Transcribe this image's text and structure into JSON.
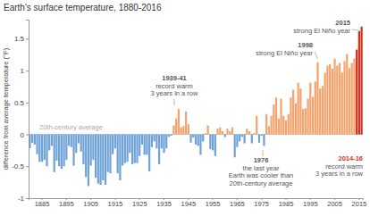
{
  "chart_data": {
    "type": "bar",
    "title": "Earth's surface temperature, 1880-2016",
    "y_label": "difference from average temperature (°F)",
    "categories": [
      null,
      null,
      null,
      null,
      null,
      "1885",
      null,
      null,
      null,
      null,
      null,
      null,
      null,
      null,
      null,
      "1895",
      null,
      null,
      null,
      null,
      null,
      null,
      null,
      null,
      null,
      "1905",
      null,
      null,
      null,
      null,
      null,
      null,
      null,
      null,
      null,
      "1915",
      null,
      null,
      null,
      null,
      null,
      null,
      null,
      null,
      null,
      "1925",
      null,
      null,
      null,
      null,
      null,
      null,
      null,
      null,
      null,
      "1935",
      null,
      null,
      null,
      null,
      null,
      null,
      null,
      null,
      null,
      "1945",
      null,
      null,
      null,
      null,
      null,
      null,
      null,
      null,
      null,
      "1955",
      null,
      null,
      null,
      null,
      null,
      null,
      null,
      null,
      null,
      "1965",
      null,
      null,
      null,
      null,
      null,
      null,
      null,
      null,
      null,
      "1975",
      null,
      null,
      null,
      null,
      null,
      null,
      null,
      null,
      null,
      "1985",
      null,
      null,
      null,
      null,
      null,
      null,
      null,
      null,
      null,
      "1995",
      null,
      null,
      null,
      null,
      null,
      null,
      null,
      null,
      null,
      "2005",
      null,
      null,
      null,
      null,
      null,
      null,
      null,
      null,
      null,
      "2015",
      null
    ],
    "values": [
      -0.22,
      -0.13,
      -0.16,
      -0.31,
      -0.43,
      -0.43,
      -0.4,
      -0.5,
      -0.25,
      -0.18,
      -0.59,
      -0.41,
      -0.5,
      -0.54,
      -0.5,
      -0.4,
      -0.18,
      -0.2,
      -0.49,
      -0.29,
      -0.14,
      -0.27,
      -0.47,
      -0.67,
      -0.81,
      -0.49,
      -0.4,
      -0.68,
      -0.77,
      -0.79,
      -0.72,
      -0.79,
      -0.59,
      -0.61,
      -0.31,
      -0.22,
      -0.61,
      -0.72,
      -0.49,
      -0.45,
      -0.43,
      -0.29,
      -0.47,
      -0.45,
      -0.45,
      -0.34,
      -0.16,
      -0.32,
      -0.32,
      -0.58,
      -0.2,
      -0.11,
      -0.22,
      -0.47,
      -0.22,
      -0.29,
      -0.22,
      -0.04,
      -0.02,
      0.14,
      0.25,
      0.4,
      0.11,
      0.13,
      0.36,
      0.16,
      -0.13,
      -0.05,
      -0.16,
      -0.18,
      -0.32,
      -0.11,
      0.02,
      0.14,
      -0.23,
      -0.25,
      -0.34,
      0.09,
      0.11,
      0.05,
      -0.04,
      0.09,
      0.05,
      0.11,
      -0.36,
      -0.2,
      -0.11,
      -0.04,
      -0.14,
      0.09,
      0.05,
      -0.14,
      0.02,
      0.29,
      -0.13,
      -0.02,
      -0.18,
      0.32,
      0.13,
      0.29,
      0.47,
      0.58,
      0.25,
      0.56,
      0.29,
      0.22,
      0.32,
      0.58,
      0.7,
      0.49,
      0.81,
      0.72,
      0.4,
      0.41,
      0.56,
      0.81,
      0.59,
      0.83,
      1.13,
      0.72,
      0.76,
      0.97,
      1.08,
      1.1,
      1.03,
      1.19,
      1.08,
      1.12,
      0.97,
      1.15,
      1.26,
      1.04,
      1.12,
      1.19,
      1.33,
      1.62,
      1.69
    ],
    "colors": [
      "#6fa3d8",
      "#6fa3d8",
      "#6fa3d8",
      "#6fa3d8",
      "#6fa3d8",
      "#6fa3d8",
      "#6fa3d8",
      "#6fa3d8",
      "#6fa3d8",
      "#6fa3d8",
      "#6fa3d8",
      "#6fa3d8",
      "#6fa3d8",
      "#6fa3d8",
      "#6fa3d8",
      "#6fa3d8",
      "#6fa3d8",
      "#6fa3d8",
      "#6fa3d8",
      "#6fa3d8",
      "#6fa3d8",
      "#6fa3d8",
      "#6fa3d8",
      "#6fa3d8",
      "#6fa3d8",
      "#6fa3d8",
      "#6fa3d8",
      "#6fa3d8",
      "#6fa3d8",
      "#6fa3d8",
      "#6fa3d8",
      "#6fa3d8",
      "#6fa3d8",
      "#6fa3d8",
      "#6fa3d8",
      "#6fa3d8",
      "#6fa3d8",
      "#6fa3d8",
      "#6fa3d8",
      "#6fa3d8",
      "#6fa3d8",
      "#6fa3d8",
      "#6fa3d8",
      "#6fa3d8",
      "#6fa3d8",
      "#6fa3d8",
      "#6fa3d8",
      "#6fa3d8",
      "#6fa3d8",
      "#6fa3d8",
      "#6fa3d8",
      "#6fa3d8",
      "#6fa3d8",
      "#6fa3d8",
      "#6fa3d8",
      "#6fa3d8",
      "#6fa3d8",
      "#6fa3d8",
      "#6fa3d8",
      "#f4a46e",
      "#f4a46e",
      "#f4a46e",
      "#f4a46e",
      "#f4a46e",
      "#f4a46e",
      "#f4a46e",
      "#6fa3d8",
      "#6fa3d8",
      "#6fa3d8",
      "#6fa3d8",
      "#6fa3d8",
      "#6fa3d8",
      "#f4a46e",
      "#f4a46e",
      "#6fa3d8",
      "#6fa3d8",
      "#6fa3d8",
      "#f4a46e",
      "#f4a46e",
      "#f4a46e",
      "#6fa3d8",
      "#f4a46e",
      "#f4a46e",
      "#f4a46e",
      "#6fa3d8",
      "#6fa3d8",
      "#6fa3d8",
      "#6fa3d8",
      "#6fa3d8",
      "#f4a46e",
      "#f4a46e",
      "#6fa3d8",
      "#f4a46e",
      "#f4a46e",
      "#6fa3d8",
      "#6fa3d8",
      "#6fa3d8",
      "#f4a46e",
      "#f4a46e",
      "#f4a46e",
      "#f4a46e",
      "#f4a46e",
      "#f4a46e",
      "#f4a46e",
      "#f4a46e",
      "#f4a46e",
      "#f4a46e",
      "#f4a46e",
      "#f4a46e",
      "#f4a46e",
      "#f4a46e",
      "#f4a46e",
      "#f4a46e",
      "#f4a46e",
      "#f4a46e",
      "#f4a46e",
      "#f4a46e",
      "#f4a46e",
      "#f4a46e",
      "#f4a46e",
      "#f4a46e",
      "#f4a46e",
      "#f4a46e",
      "#f4a46e",
      "#f4a46e",
      "#f4a46e",
      "#f4a46e",
      "#f4a46e",
      "#f4a46e",
      "#f4a46e",
      "#f4a46e",
      "#f4a46e",
      "#f4a46e",
      "#f4a46e",
      "#d7301f",
      "#d7301f",
      "#d7301f"
    ],
    "ylim": [
      -1,
      1.8
    ],
    "yticks": [
      -1,
      -0.5,
      0,
      0.5,
      1,
      1.5
    ],
    "grid": false,
    "annotations": [
      [
        "20th-century average"
      ],
      [
        "1939-41",
        "record warm",
        "3 years in a row"
      ],
      [
        "1976",
        "the last year",
        "Earth was cooler than",
        "20th-century average"
      ],
      [
        "1998",
        "strong El Niño year"
      ],
      [
        "2015",
        "strong El Niño year"
      ],
      [
        "2014-16",
        "record warm",
        "3 years in a row"
      ]
    ]
  }
}
